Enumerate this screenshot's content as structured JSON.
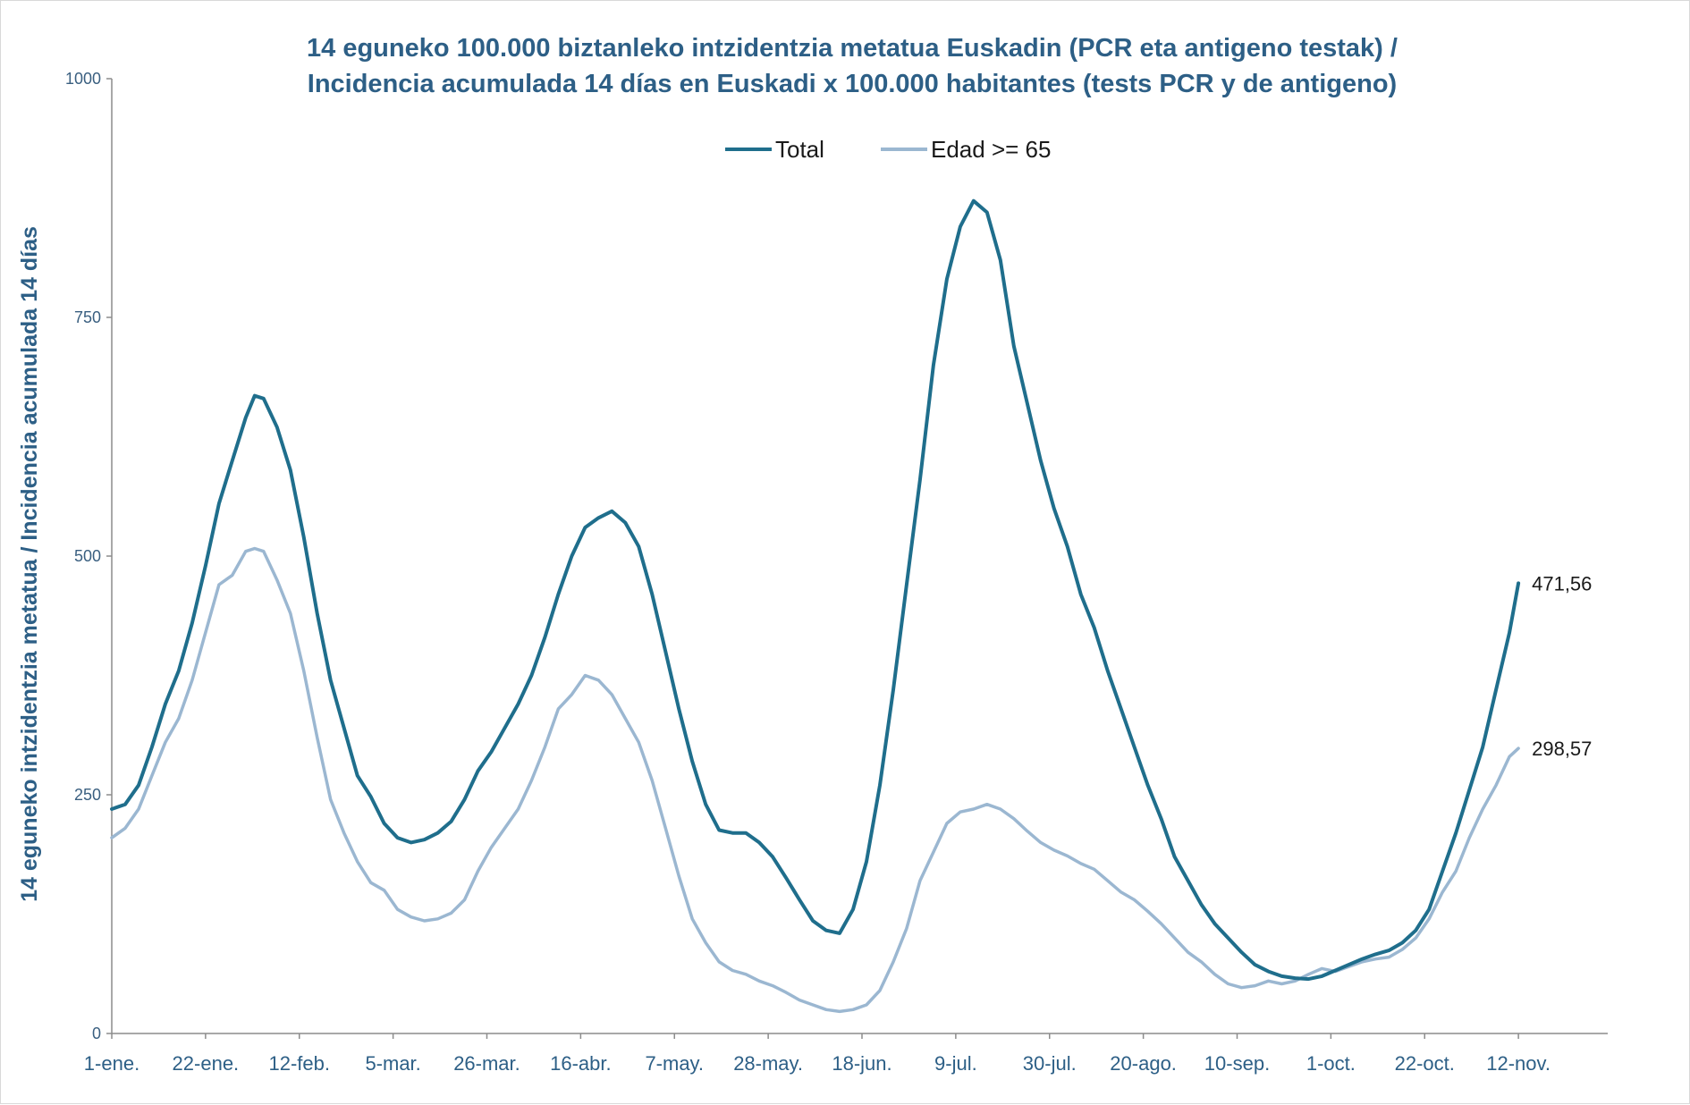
{
  "chart_data": {
    "type": "line",
    "title_lines": [
      "14 eguneko 100.000 biztanleko intzidentzia metatua Euskadin (PCR eta antigeno testak) /",
      "Incidencia acumulada 14 días en Euskadi x 100.000 habitantes (tests PCR y de antigeno)"
    ],
    "ylabel": "14 eguneko intzidentzia metatua / Incidencia acumulada 14 días",
    "xlabel": "",
    "ylim": [
      0,
      1000
    ],
    "y_ticks": [
      0,
      250,
      500,
      750,
      1000
    ],
    "x_range": [
      "1-ene.",
      "2-dic."
    ],
    "x_tick_labels": [
      "1-ene.",
      "22-ene.",
      "12-feb.",
      "5-mar.",
      "26-mar.",
      "16-abr.",
      "7-may.",
      "28-may.",
      "18-jun.",
      "9-jul.",
      "30-jul.",
      "20-ago.",
      "10-sep.",
      "1-oct.",
      "22-oct.",
      "12-nov."
    ],
    "legend_position": "top-center",
    "grid": false,
    "series": [
      {
        "name": "Total",
        "color": "#1f6e8c",
        "end_label": "471,56",
        "points": [
          [
            "1-ene.",
            235
          ],
          [
            "4-ene.",
            240
          ],
          [
            "7-ene.",
            260
          ],
          [
            "10-ene.",
            300
          ],
          [
            "13-ene.",
            345
          ],
          [
            "16-ene.",
            380
          ],
          [
            "19-ene.",
            430
          ],
          [
            "22-ene.",
            490
          ],
          [
            "25-ene.",
            555
          ],
          [
            "28-ene.",
            600
          ],
          [
            "31-ene.",
            645
          ],
          [
            "2-feb.",
            668
          ],
          [
            "4-feb.",
            665
          ],
          [
            "7-feb.",
            635
          ],
          [
            "10-feb.",
            590
          ],
          [
            "13-feb.",
            520
          ],
          [
            "16-feb.",
            440
          ],
          [
            "19-feb.",
            370
          ],
          [
            "22-feb.",
            320
          ],
          [
            "25-feb.",
            270
          ],
          [
            "28-feb.",
            248
          ],
          [
            "3-mar.",
            220
          ],
          [
            "6-mar.",
            205
          ],
          [
            "9-mar.",
            200
          ],
          [
            "12-mar.",
            203
          ],
          [
            "15-mar.",
            210
          ],
          [
            "18-mar.",
            222
          ],
          [
            "21-mar.",
            245
          ],
          [
            "24-mar.",
            275
          ],
          [
            "27-mar.",
            295
          ],
          [
            "30-mar.",
            320
          ],
          [
            "2-abr.",
            345
          ],
          [
            "5-abr.",
            375
          ],
          [
            "8-abr.",
            415
          ],
          [
            "11-abr.",
            460
          ],
          [
            "14-abr.",
            500
          ],
          [
            "17-abr.",
            530
          ],
          [
            "20-abr.",
            540
          ],
          [
            "23-abr.",
            547
          ],
          [
            "26-abr.",
            535
          ],
          [
            "29-abr.",
            510
          ],
          [
            "2-may.",
            460
          ],
          [
            "5-may.",
            400
          ],
          [
            "8-may.",
            340
          ],
          [
            "11-may.",
            285
          ],
          [
            "14-may.",
            240
          ],
          [
            "17-may.",
            213
          ],
          [
            "20-may.",
            210
          ],
          [
            "23-may.",
            210
          ],
          [
            "26-may.",
            200
          ],
          [
            "29-may.",
            185
          ],
          [
            "1-jun.",
            163
          ],
          [
            "4-jun.",
            140
          ],
          [
            "7-jun.",
            118
          ],
          [
            "10-jun.",
            108
          ],
          [
            "13-jun.",
            105
          ],
          [
            "16-jun.",
            130
          ],
          [
            "19-jun.",
            180
          ],
          [
            "22-jun.",
            260
          ],
          [
            "25-jun.",
            360
          ],
          [
            "28-jun.",
            470
          ],
          [
            "1-jul.",
            580
          ],
          [
            "4-jul.",
            700
          ],
          [
            "7-jul.",
            790
          ],
          [
            "10-jul.",
            845
          ],
          [
            "13-jul.",
            872
          ],
          [
            "16-jul.",
            860
          ],
          [
            "19-jul.",
            810
          ],
          [
            "22-jul.",
            720
          ],
          [
            "25-jul.",
            660
          ],
          [
            "28-jul.",
            600
          ],
          [
            "31-jul.",
            550
          ],
          [
            "3-ago.",
            510
          ],
          [
            "6-ago.",
            460
          ],
          [
            "9-ago.",
            425
          ],
          [
            "12-ago.",
            380
          ],
          [
            "15-ago.",
            340
          ],
          [
            "18-ago.",
            300
          ],
          [
            "21-ago.",
            260
          ],
          [
            "24-ago.",
            225
          ],
          [
            "27-ago.",
            185
          ],
          [
            "30-ago.",
            160
          ],
          [
            "2-sep.",
            135
          ],
          [
            "5-sep.",
            115
          ],
          [
            "8-sep.",
            100
          ],
          [
            "11-sep.",
            85
          ],
          [
            "14-sep.",
            72
          ],
          [
            "17-sep.",
            65
          ],
          [
            "20-sep.",
            60
          ],
          [
            "23-sep.",
            58
          ],
          [
            "26-sep.",
            57
          ],
          [
            "29-sep.",
            60
          ],
          [
            "2-oct.",
            66
          ],
          [
            "5-oct.",
            72
          ],
          [
            "8-oct.",
            78
          ],
          [
            "11-oct.",
            83
          ],
          [
            "14-oct.",
            87
          ],
          [
            "17-oct.",
            95
          ],
          [
            "20-oct.",
            108
          ],
          [
            "23-oct.",
            130
          ],
          [
            "26-oct.",
            170
          ],
          [
            "29-oct.",
            210
          ],
          [
            "1-nov.",
            255
          ],
          [
            "4-nov.",
            300
          ],
          [
            "7-nov.",
            360
          ],
          [
            "10-nov.",
            420
          ],
          [
            "12-nov.",
            471.56
          ]
        ]
      },
      {
        "name": "Edad >= 65",
        "color": "#9bb7d1",
        "end_label": "298,57",
        "points": [
          [
            "1-ene.",
            205
          ],
          [
            "4-ene.",
            215
          ],
          [
            "7-ene.",
            235
          ],
          [
            "10-ene.",
            270
          ],
          [
            "13-ene.",
            305
          ],
          [
            "16-ene.",
            330
          ],
          [
            "19-ene.",
            370
          ],
          [
            "22-ene.",
            420
          ],
          [
            "25-ene.",
            470
          ],
          [
            "28-ene.",
            480
          ],
          [
            "31-ene.",
            505
          ],
          [
            "2-feb.",
            508
          ],
          [
            "4-feb.",
            505
          ],
          [
            "7-feb.",
            475
          ],
          [
            "10-feb.",
            440
          ],
          [
            "13-feb.",
            380
          ],
          [
            "16-feb.",
            310
          ],
          [
            "19-feb.",
            245
          ],
          [
            "22-feb.",
            210
          ],
          [
            "25-feb.",
            180
          ],
          [
            "28-feb.",
            158
          ],
          [
            "3-mar.",
            150
          ],
          [
            "6-mar.",
            130
          ],
          [
            "9-mar.",
            122
          ],
          [
            "12-mar.",
            118
          ],
          [
            "15-mar.",
            120
          ],
          [
            "18-mar.",
            126
          ],
          [
            "21-mar.",
            140
          ],
          [
            "24-mar.",
            170
          ],
          [
            "27-mar.",
            195
          ],
          [
            "30-mar.",
            215
          ],
          [
            "2-abr.",
            235
          ],
          [
            "5-abr.",
            265
          ],
          [
            "8-abr.",
            300
          ],
          [
            "11-abr.",
            340
          ],
          [
            "14-abr.",
            355
          ],
          [
            "17-abr.",
            375
          ],
          [
            "20-abr.",
            370
          ],
          [
            "23-abr.",
            355
          ],
          [
            "26-abr.",
            330
          ],
          [
            "29-abr.",
            305
          ],
          [
            "2-may.",
            265
          ],
          [
            "5-may.",
            215
          ],
          [
            "8-may.",
            165
          ],
          [
            "11-may.",
            120
          ],
          [
            "14-may.",
            95
          ],
          [
            "17-may.",
            75
          ],
          [
            "20-may.",
            66
          ],
          [
            "23-may.",
            62
          ],
          [
            "26-may.",
            55
          ],
          [
            "29-may.",
            50
          ],
          [
            "1-jun.",
            43
          ],
          [
            "4-jun.",
            35
          ],
          [
            "7-jun.",
            30
          ],
          [
            "10-jun.",
            25
          ],
          [
            "13-jun.",
            23
          ],
          [
            "16-jun.",
            25
          ],
          [
            "19-jun.",
            30
          ],
          [
            "22-jun.",
            45
          ],
          [
            "25-jun.",
            75
          ],
          [
            "28-jun.",
            110
          ],
          [
            "1-jul.",
            160
          ],
          [
            "4-jul.",
            190
          ],
          [
            "7-jul.",
            220
          ],
          [
            "10-jul.",
            232
          ],
          [
            "13-jul.",
            235
          ],
          [
            "16-jul.",
            240
          ],
          [
            "19-jul.",
            235
          ],
          [
            "22-jul.",
            225
          ],
          [
            "25-jul.",
            212
          ],
          [
            "28-jul.",
            200
          ],
          [
            "31-jul.",
            192
          ],
          [
            "3-ago.",
            186
          ],
          [
            "6-ago.",
            178
          ],
          [
            "9-ago.",
            172
          ],
          [
            "12-ago.",
            160
          ],
          [
            "15-ago.",
            148
          ],
          [
            "18-ago.",
            140
          ],
          [
            "21-ago.",
            128
          ],
          [
            "24-ago.",
            115
          ],
          [
            "27-ago.",
            100
          ],
          [
            "30-ago.",
            85
          ],
          [
            "2-sep.",
            75
          ],
          [
            "5-sep.",
            62
          ],
          [
            "8-sep.",
            52
          ],
          [
            "11-sep.",
            48
          ],
          [
            "14-sep.",
            50
          ],
          [
            "17-sep.",
            55
          ],
          [
            "20-sep.",
            52
          ],
          [
            "23-sep.",
            55
          ],
          [
            "26-sep.",
            62
          ],
          [
            "29-sep.",
            68
          ],
          [
            "2-oct.",
            65
          ],
          [
            "5-oct.",
            70
          ],
          [
            "8-oct.",
            75
          ],
          [
            "11-oct.",
            78
          ],
          [
            "14-oct.",
            80
          ],
          [
            "17-oct.",
            88
          ],
          [
            "20-oct.",
            100
          ],
          [
            "23-oct.",
            120
          ],
          [
            "26-oct.",
            148
          ],
          [
            "29-oct.",
            170
          ],
          [
            "1-nov.",
            205
          ],
          [
            "4-nov.",
            235
          ],
          [
            "7-nov.",
            260
          ],
          [
            "10-nov.",
            290
          ],
          [
            "12-nov.",
            298.57
          ]
        ]
      }
    ]
  }
}
